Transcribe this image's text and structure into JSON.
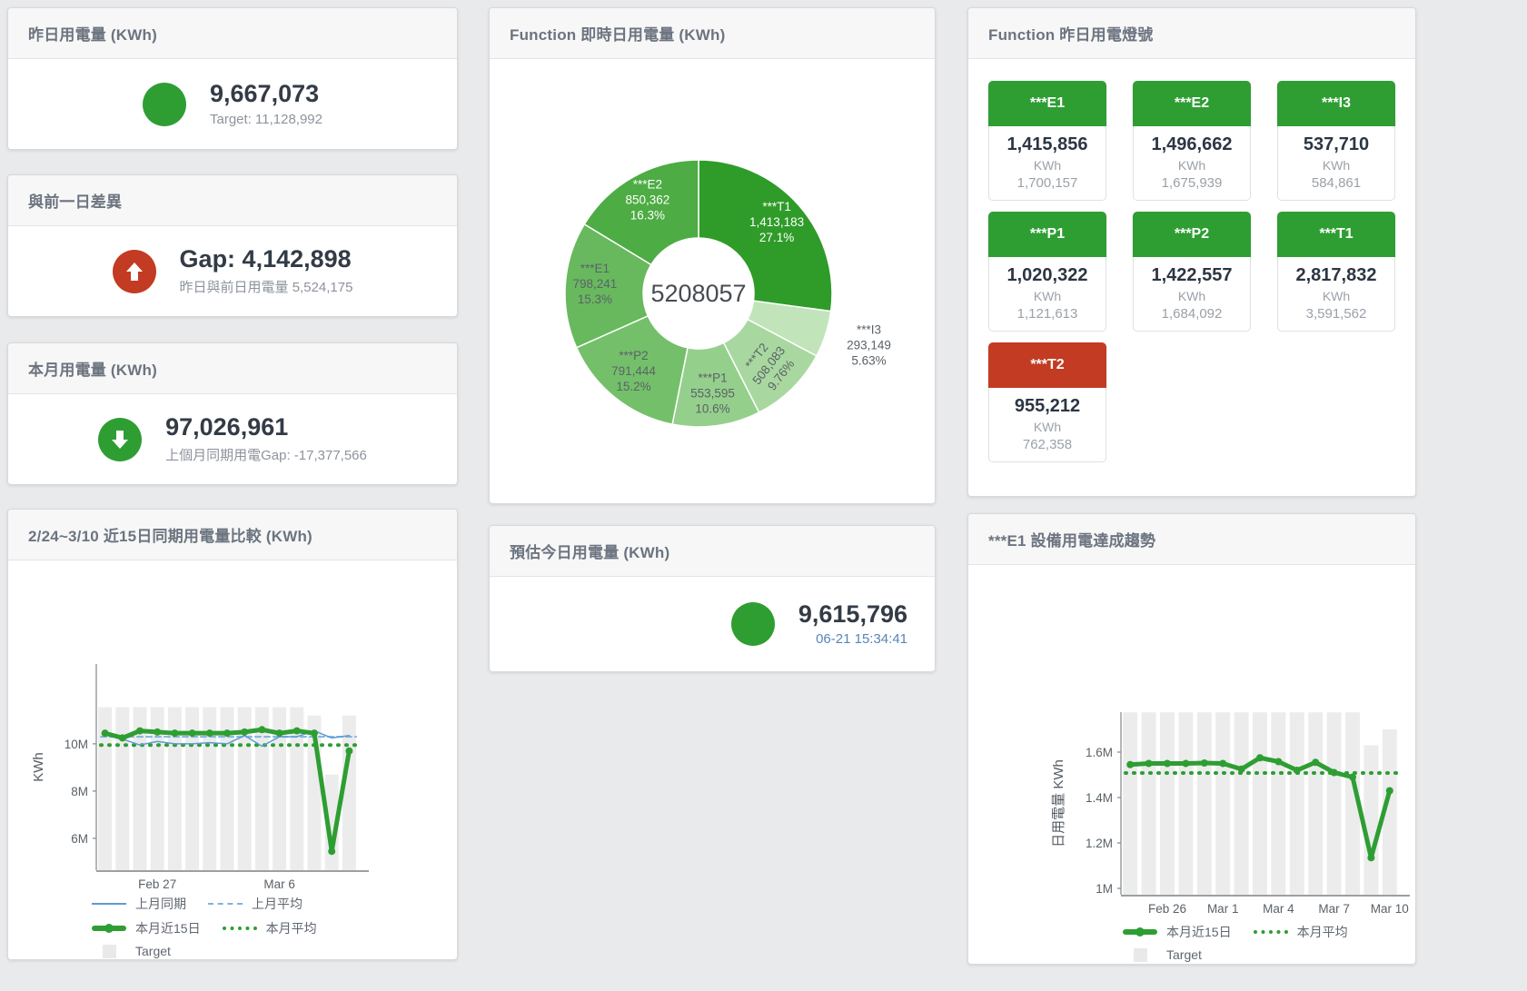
{
  "colors": {
    "green": "#2e9e33",
    "red": "#c23b22",
    "bar_gray": "#ececec",
    "blue": "#5b9bd5",
    "blue_light": "#7fb3dd"
  },
  "cards": {
    "yesterday": {
      "title": "昨日用電量 (KWh)",
      "value": "9,667,073",
      "subtitle": "Target: 11,128,992",
      "status": "green"
    },
    "gap_prev_day": {
      "title": "與前一日差異",
      "value": "Gap: 4,142,898",
      "subtitle": "昨日與前日用電量 5,524,175",
      "status": "red",
      "arrow": "up"
    },
    "month": {
      "title": "本月用電量 (KWh)",
      "value": "97,026,961",
      "subtitle": "上個月同期用電Gap: -17,377,566",
      "status": "green",
      "arrow": "down"
    },
    "estimate_today": {
      "title": "預估今日用電量 (KWh)",
      "value": "9,615,796",
      "subtitle": "06-21 15:34:41",
      "status": "green"
    }
  },
  "donut_card": {
    "title": "Function 即時日用電量 (KWh)"
  },
  "lights_card": {
    "title": "Function 昨日用電燈號",
    "unit": "KWh",
    "tiles": [
      {
        "name": "***E1",
        "value": "1,415,856",
        "target": "1,700,157",
        "status": "green"
      },
      {
        "name": "***E2",
        "value": "1,496,662",
        "target": "1,675,939",
        "status": "green"
      },
      {
        "name": "***I3",
        "value": "537,710",
        "target": "584,861",
        "status": "green"
      },
      {
        "name": "***P1",
        "value": "1,020,322",
        "target": "1,121,613",
        "status": "green"
      },
      {
        "name": "***P2",
        "value": "1,422,557",
        "target": "1,684,092",
        "status": "green"
      },
      {
        "name": "***T1",
        "value": "2,817,832",
        "target": "3,591,562",
        "status": "green"
      },
      {
        "name": "***T2",
        "value": "955,212",
        "target": "762,358",
        "status": "red"
      }
    ]
  },
  "trend_left_card": {
    "title": "2/24~3/10 近15日同期用電量比較 (KWh)"
  },
  "trend_right_card": {
    "title": "***E1 設備用電達成趨勢"
  },
  "chart_data": [
    {
      "type": "pie",
      "title": "Function 即時日用電量 (KWh)",
      "center_label": "5208057",
      "legend_position": "none",
      "segments": [
        {
          "name": "***T1",
          "value": 1413183,
          "value_label": "1,413,183",
          "pct": "27.1%",
          "color": "#2f9c29",
          "text": "#ffffff",
          "placement": "inside",
          "rotate": 0
        },
        {
          "name": "***I3",
          "value": 293149,
          "value_label": "293,149",
          "pct": "5.63%",
          "color": "#c2e4ba",
          "text": "#5a6268",
          "placement": "outside",
          "rotate": 0
        },
        {
          "name": "***T2",
          "value": 508083,
          "value_label": "508,083",
          "pct": "9.76%",
          "color": "#a8d89f",
          "text": "#5a6268",
          "placement": "inside",
          "rotate": -52
        },
        {
          "name": "***P1",
          "value": 553595,
          "value_label": "553,595",
          "pct": "10.6%",
          "color": "#95cf8c",
          "text": "#5a6268",
          "placement": "inside",
          "rotate": 0
        },
        {
          "name": "***P2",
          "value": 791444,
          "value_label": "791,444",
          "pct": "15.2%",
          "color": "#74c06a",
          "text": "#5a6268",
          "placement": "inside",
          "rotate": 0
        },
        {
          "name": "***E1",
          "value": 798241,
          "value_label": "798,241",
          "pct": "15.3%",
          "color": "#68b95e",
          "text": "#5a6268",
          "placement": "inside",
          "rotate": 0
        },
        {
          "name": "***E2",
          "value": 850362,
          "value_label": "850,362",
          "pct": "16.3%",
          "color": "#4dac43",
          "text": "#ffffff",
          "placement": "inside",
          "rotate": 0
        }
      ]
    },
    {
      "type": "line",
      "title": "2/24~3/10 近15日同期用電量比較 (KWh)",
      "categories": [
        "Feb 24",
        "Feb 25",
        "Feb 26",
        "Feb 27",
        "Feb 28",
        "Mar 1",
        "Mar 2",
        "Mar 3",
        "Mar 4",
        "Mar 5",
        "Mar 6",
        "Mar 7",
        "Mar 8",
        "Mar 9",
        "Mar 10"
      ],
      "ylabel": "KWh",
      "ylim": [
        4650000,
        13380000
      ],
      "grid": false,
      "legend_position": "bottom",
      "yticks": [
        {
          "v": 6000000,
          "label": "6M"
        },
        {
          "v": 8000000,
          "label": "8M"
        },
        {
          "v": 10000000,
          "label": "10M"
        }
      ],
      "xticks": [
        {
          "i": 3,
          "label": "Feb 27"
        },
        {
          "i": 10,
          "label": "Mar 6"
        }
      ],
      "series": [
        {
          "name": "Target",
          "type": "bar",
          "color": "#ececec",
          "values": [
            11550000,
            11550000,
            11550000,
            11550000,
            11550000,
            11550000,
            11550000,
            11550000,
            11550000,
            11550000,
            11550000,
            11550000,
            11200000,
            8700000,
            11200000
          ]
        },
        {
          "name": "上月同期",
          "type": "line",
          "color": "#5b9bd5",
          "width": 1.5,
          "markers": false,
          "values": [
            10500000,
            10200000,
            9950000,
            10100000,
            10000000,
            10000000,
            10050000,
            10000000,
            10350000,
            9900000,
            10300000,
            10300000,
            10550000,
            10250000,
            10350000
          ]
        },
        {
          "name": "上月平均",
          "type": "avg",
          "color": "#7fb3dd",
          "width": 2,
          "dash": "6 4",
          "value": 10300000
        },
        {
          "name": "本月近15日",
          "type": "line",
          "color": "#2e9e33",
          "width": 5,
          "markers": true,
          "values": [
            10450000,
            10250000,
            10550000,
            10500000,
            10450000,
            10450000,
            10450000,
            10450000,
            10500000,
            10600000,
            10450000,
            10550000,
            10450000,
            5450000,
            9700000
          ]
        },
        {
          "name": "本月平均",
          "type": "avg",
          "color": "#2e9e33",
          "width": 4,
          "dash": "1 8",
          "value": 9950000
        }
      ],
      "legend": [
        [
          "上月同期",
          "上月平均"
        ],
        [
          "本月近15日",
          "本月平均"
        ],
        [
          "Target"
        ]
      ]
    },
    {
      "type": "line",
      "title": "***E1 設備用電達成趨勢",
      "categories": [
        "Feb 24",
        "Feb 25",
        "Feb 26",
        "Feb 27",
        "Feb 28",
        "Mar 1",
        "Mar 2",
        "Mar 3",
        "Mar 4",
        "Mar 5",
        "Mar 6",
        "Mar 7",
        "Mar 8",
        "Mar 9",
        "Mar 10"
      ],
      "ylabel": "日用電量 KWh",
      "ylim": [
        972000,
        1776000
      ],
      "grid": false,
      "legend_position": "bottom",
      "yticks": [
        {
          "v": 1000000,
          "label": "1M"
        },
        {
          "v": 1200000,
          "label": "1.2M"
        },
        {
          "v": 1400000,
          "label": "1.4M"
        },
        {
          "v": 1600000,
          "label": "1.6M"
        }
      ],
      "xticks": [
        {
          "i": 2,
          "label": "Feb 26"
        },
        {
          "i": 5,
          "label": "Mar 1"
        },
        {
          "i": 8,
          "label": "Mar 4"
        },
        {
          "i": 11,
          "label": "Mar 7"
        },
        {
          "i": 14,
          "label": "Mar 10"
        }
      ],
      "series": [
        {
          "name": "Target",
          "type": "bar",
          "color": "#ececec",
          "values": [
            1775000,
            1775000,
            1775000,
            1775000,
            1775000,
            1775000,
            1775000,
            1775000,
            1775000,
            1775000,
            1775000,
            1775000,
            1775000,
            1630000,
            1700000
          ]
        },
        {
          "name": "本月近15日",
          "type": "line",
          "color": "#2e9e33",
          "width": 5,
          "markers": true,
          "values": [
            1545000,
            1550000,
            1550000,
            1550000,
            1552000,
            1550000,
            1525000,
            1575000,
            1558000,
            1520000,
            1555000,
            1510000,
            1490000,
            1135000,
            1430000
          ]
        },
        {
          "name": "本月平均",
          "type": "avg",
          "color": "#2e9e33",
          "width": 4,
          "dash": "1 8",
          "value": 1508000
        }
      ],
      "legend": [
        [
          "本月近15日",
          "本月平均"
        ],
        [
          "Target"
        ]
      ]
    }
  ]
}
